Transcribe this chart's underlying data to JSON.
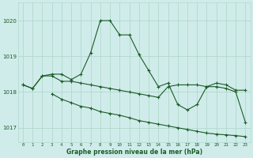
{
  "title": "Graphe pression niveau de la mer (hPa)",
  "bg_color": "#d0ecea",
  "grid_color": "#b0d8cc",
  "line_color": "#1a5c28",
  "xlim": [
    -0.5,
    23.5
  ],
  "ylim": [
    1016.6,
    1020.5
  ],
  "yticks": [
    1017,
    1018,
    1019,
    1020
  ],
  "xticks": [
    0,
    1,
    2,
    3,
    4,
    5,
    6,
    7,
    8,
    9,
    10,
    11,
    12,
    13,
    14,
    15,
    16,
    17,
    18,
    19,
    20,
    21,
    22,
    23
  ],
  "series1_x": [
    0,
    1,
    2,
    3,
    4,
    5,
    6,
    7,
    8,
    9,
    10,
    11,
    12,
    13,
    14,
    15,
    16,
    17,
    18,
    19,
    20,
    21,
    22,
    23
  ],
  "series1_y": [
    1018.2,
    1018.1,
    1018.45,
    1018.5,
    1018.5,
    1018.35,
    1018.5,
    1019.1,
    1020.0,
    1020.0,
    1019.6,
    1019.6,
    1019.05,
    1018.6,
    1018.15,
    1018.25,
    1017.65,
    1017.5,
    1017.65,
    1018.15,
    1018.25,
    1018.2,
    1018.05,
    1018.05
  ],
  "series2_x": [
    0,
    1,
    2,
    3,
    4,
    5,
    6,
    7,
    8,
    9,
    10,
    11,
    12,
    13,
    14,
    15,
    16,
    17,
    18,
    19,
    20,
    21,
    22,
    23
  ],
  "series2_y": [
    1018.2,
    1018.1,
    1018.45,
    1018.45,
    1018.3,
    1018.3,
    1018.25,
    1018.2,
    1018.15,
    1018.1,
    1018.05,
    1018.0,
    1017.95,
    1017.9,
    1017.85,
    1018.15,
    1018.2,
    1018.2,
    1018.2,
    1018.15,
    1018.15,
    1018.1,
    1018.0,
    1017.15
  ],
  "series3_x": [
    3,
    4,
    5,
    6,
    7,
    8,
    9,
    10,
    11,
    12,
    13,
    14,
    15,
    16,
    17,
    18,
    19,
    20,
    21,
    22,
    23
  ],
  "series3_y": [
    1017.95,
    1017.8,
    1017.7,
    1017.6,
    1017.55,
    1017.45,
    1017.4,
    1017.35,
    1017.28,
    1017.2,
    1017.15,
    1017.1,
    1017.05,
    1017.0,
    1016.95,
    1016.9,
    1016.85,
    1016.82,
    1016.8,
    1016.78,
    1016.75
  ]
}
